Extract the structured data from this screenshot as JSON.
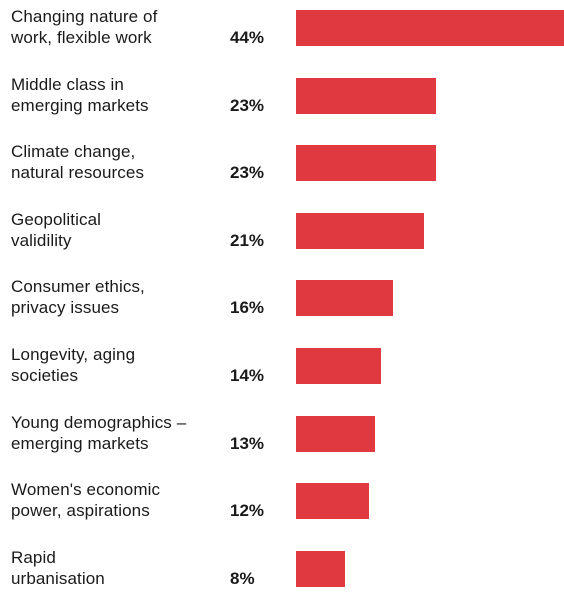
{
  "chart_data": {
    "type": "bar",
    "orientation": "horizontal",
    "title": "",
    "xlabel": "",
    "ylabel": "",
    "bar_color": "#e03a40",
    "xlim": [
      0,
      44
    ],
    "grid": false,
    "categories": [
      [
        "Changing nature of",
        "work, flexible work"
      ],
      [
        "Middle class in",
        "emerging markets"
      ],
      [
        "Climate change,",
        "natural resources"
      ],
      [
        "Geopolitical",
        "validility"
      ],
      [
        "Consumer ethics,",
        "privacy issues"
      ],
      [
        "Longevity, aging",
        "societies"
      ],
      [
        "Young demographics –",
        "emerging markets"
      ],
      [
        "Women's economic",
        "power, aspirations"
      ],
      [
        "Rapid",
        "urbanisation"
      ]
    ],
    "values": [
      44,
      23,
      23,
      21,
      16,
      14,
      13,
      12,
      8
    ],
    "value_labels": [
      "44%",
      "23%",
      "23%",
      "21%",
      "16%",
      "14%",
      "13%",
      "12%",
      "8%"
    ]
  }
}
